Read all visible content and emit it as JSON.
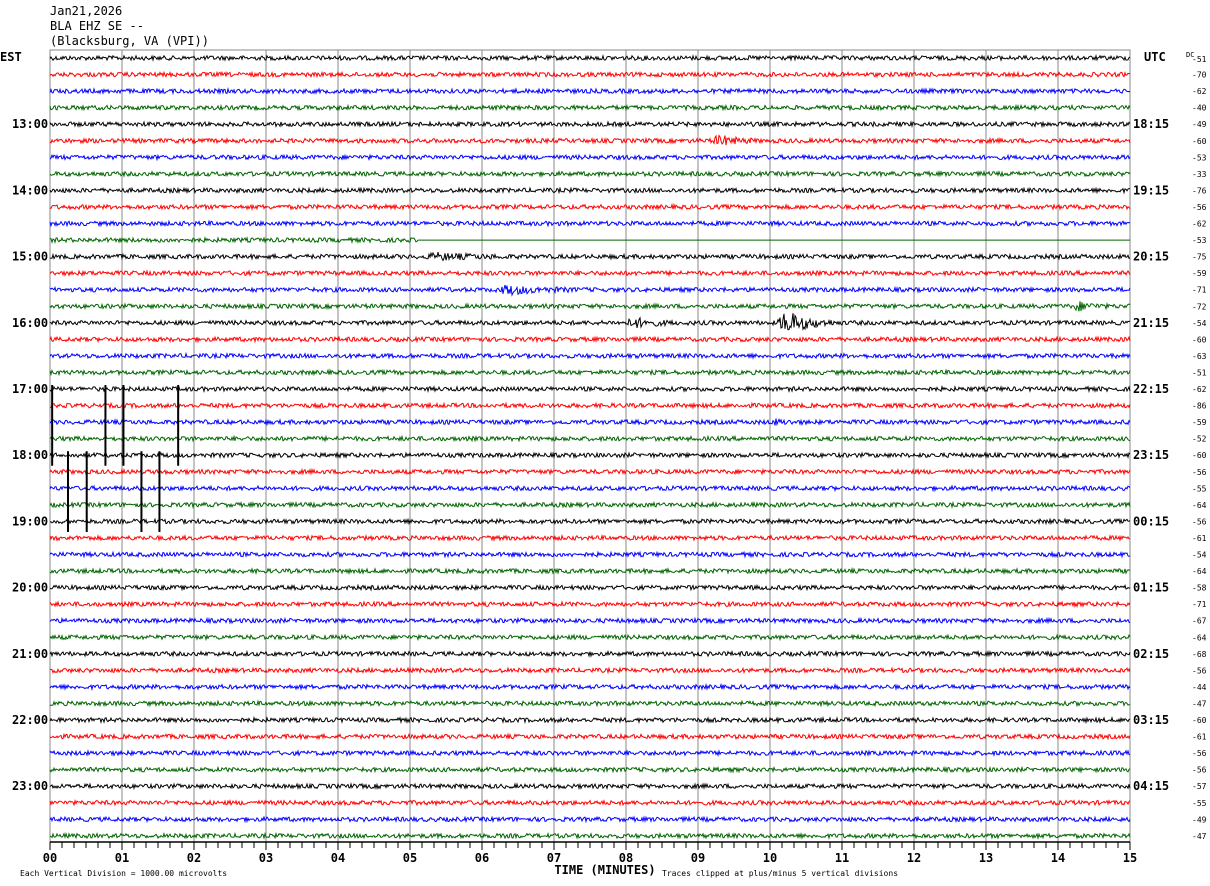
{
  "header": {
    "date": "Jan21,2026",
    "station": "BLA EHZ SE --",
    "location": "(Blacksburg, VA (VPI))"
  },
  "footer": {
    "scale": "Each Vertical Division = 1000.00 microvolts",
    "clip": "Traces clipped at plus/minus 5 vertical divisions"
  },
  "chart_data": {
    "type": "line",
    "subtype": "helicorder",
    "xlabel": "TIME (MINUTES)",
    "xlim": [
      0,
      15
    ],
    "x_ticks": [
      "00",
      "01",
      "02",
      "03",
      "04",
      "05",
      "06",
      "07",
      "08",
      "09",
      "10",
      "11",
      "12",
      "13",
      "14",
      "15"
    ],
    "left_axis_title": "EST",
    "right_axis_title": "UTC",
    "dc_title": "DC",
    "minutes_per_row": 15,
    "trace_colors": [
      "#000000",
      "#ff0000",
      "#0000ff",
      "#006400"
    ],
    "grid": true,
    "left_labels": [
      {
        "row": 4,
        "text": "13:00"
      },
      {
        "row": 8,
        "text": "14:00"
      },
      {
        "row": 12,
        "text": "15:00"
      },
      {
        "row": 16,
        "text": "16:00"
      },
      {
        "row": 20,
        "text": "17:00"
      },
      {
        "row": 24,
        "text": "18:00"
      },
      {
        "row": 28,
        "text": "19:00"
      },
      {
        "row": 32,
        "text": "20:00"
      },
      {
        "row": 36,
        "text": "21:00"
      },
      {
        "row": 40,
        "text": "22:00"
      },
      {
        "row": 44,
        "text": "23:00"
      }
    ],
    "right_labels": [
      {
        "row": 4,
        "text": "18:15"
      },
      {
        "row": 8,
        "text": "19:15"
      },
      {
        "row": 12,
        "text": "20:15"
      },
      {
        "row": 16,
        "text": "21:15"
      },
      {
        "row": 20,
        "text": "22:15"
      },
      {
        "row": 24,
        "text": "23:15"
      },
      {
        "row": 28,
        "text": "00:15"
      },
      {
        "row": 32,
        "text": "01:15"
      },
      {
        "row": 36,
        "text": "02:15"
      },
      {
        "row": 40,
        "text": "03:15"
      },
      {
        "row": 44,
        "text": "04:15"
      }
    ],
    "dc_offsets": [
      -51,
      -70,
      -62,
      -40,
      -49,
      -60,
      -53,
      -33,
      -76,
      -56,
      -62,
      -53,
      -75,
      -59,
      -71,
      -72,
      -54,
      -60,
      -63,
      -51,
      -62,
      -86,
      -59,
      -52,
      -60,
      -56,
      -55,
      -64,
      -56,
      -61,
      -54,
      -64,
      -58,
      -71,
      -67,
      -64,
      -68,
      -56,
      -44,
      -47,
      -60,
      -61,
      -56,
      -56,
      -57,
      -55,
      -49,
      -47
    ],
    "events": [
      {
        "row": 5,
        "start_min": 9.2,
        "end_min": 9.8,
        "amplitude_div": 1.5
      },
      {
        "row": 12,
        "start_min": 5.2,
        "end_min": 6.4,
        "amplitude_div": 0.8
      },
      {
        "row": 14,
        "start_min": 6.2,
        "end_min": 7.3,
        "amplitude_div": 1.2
      },
      {
        "row": 15,
        "start_min": 14.2,
        "end_min": 14.7,
        "amplitude_div": 1.2
      },
      {
        "row": 16,
        "start_min": 8.0,
        "end_min": 8.7,
        "amplitude_div": 1.3
      },
      {
        "row": 16,
        "start_min": 10.1,
        "end_min": 10.9,
        "amplitude_div": 3.5
      },
      {
        "row": 22,
        "start_min": 10.0,
        "end_min": 10.5,
        "amplitude_div": 0.5
      }
    ],
    "flat_segments": [
      {
        "row": 11,
        "start_min": 5.1,
        "end_min": 15
      }
    ],
    "spikes": [
      {
        "start_row": 20,
        "end_row": 25,
        "minutes": [
          0.03,
          0.77,
          1.02,
          1.78
        ]
      },
      {
        "start_row": 24,
        "end_row": 29,
        "minutes": [
          0.25,
          0.51,
          1.27,
          1.52
        ]
      }
    ]
  }
}
